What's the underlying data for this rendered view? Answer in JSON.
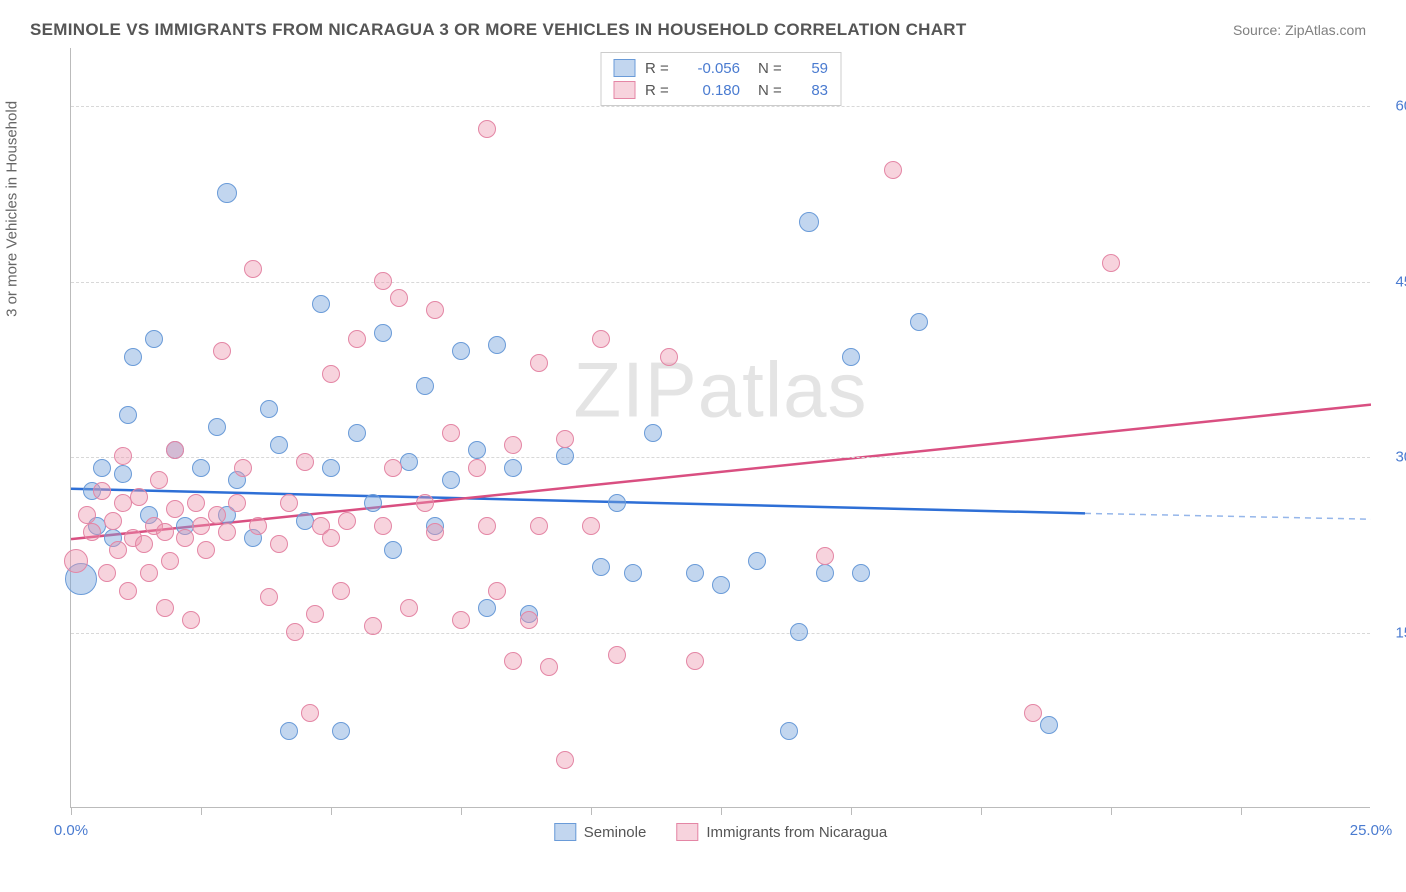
{
  "title": "SEMINOLE VS IMMIGRANTS FROM NICARAGUA 3 OR MORE VEHICLES IN HOUSEHOLD CORRELATION CHART",
  "source": "Source: ZipAtlas.com",
  "watermark": "ZIPatlas",
  "y_axis_label": "3 or more Vehicles in Household",
  "chart": {
    "type": "scatter",
    "xlim": [
      0,
      25
    ],
    "ylim": [
      0,
      65
    ],
    "x_ticks": [
      0,
      2.5,
      5,
      7.5,
      10,
      12.5,
      15,
      17.5,
      20,
      22.5
    ],
    "x_tick_labels": {
      "0": "0.0%",
      "25": "25.0%"
    },
    "y_ticks": [
      15,
      30,
      45,
      60
    ],
    "y_tick_labels": [
      "15.0%",
      "30.0%",
      "45.0%",
      "60.0%"
    ],
    "background_color": "#ffffff",
    "grid_color": "#d8d8d8",
    "axis_color": "#bbbbbb",
    "tick_label_color": "#4a7bd0",
    "series": [
      {
        "name": "Seminole",
        "fill": "rgba(120,165,220,0.45)",
        "stroke": "#6a9bd8",
        "R": "-0.056",
        "N": "59",
        "trend": {
          "x1": 0,
          "y1": 27.3,
          "x2": 19.5,
          "y2": 25.2,
          "dash_x2": 25,
          "dash_y2": 24.7,
          "color": "#2e6fd6",
          "width": 2.5
        },
        "points": [
          [
            0.2,
            19.5,
            16
          ],
          [
            0.4,
            27,
            9
          ],
          [
            0.5,
            24,
            9
          ],
          [
            0.6,
            29,
            9
          ],
          [
            0.8,
            23,
            9
          ],
          [
            1.0,
            28.5,
            9
          ],
          [
            1.1,
            33.5,
            9
          ],
          [
            1.2,
            38.5,
            9
          ],
          [
            1.5,
            25,
            9
          ],
          [
            1.6,
            40,
            9
          ],
          [
            2.0,
            30.5,
            9
          ],
          [
            2.2,
            24,
            9
          ],
          [
            2.5,
            29,
            9
          ],
          [
            2.8,
            32.5,
            9
          ],
          [
            3.0,
            52.5,
            10
          ],
          [
            3.0,
            25,
            9
          ],
          [
            3.2,
            28,
            9
          ],
          [
            3.5,
            23,
            9
          ],
          [
            3.8,
            34,
            9
          ],
          [
            4.0,
            31,
            9
          ],
          [
            4.2,
            6.5,
            9
          ],
          [
            4.5,
            24.5,
            9
          ],
          [
            4.8,
            43,
            9
          ],
          [
            5.0,
            29,
            9
          ],
          [
            5.2,
            6.5,
            9
          ],
          [
            5.5,
            32,
            9
          ],
          [
            5.8,
            26,
            9
          ],
          [
            6.0,
            40.5,
            9
          ],
          [
            6.2,
            22,
            9
          ],
          [
            6.5,
            29.5,
            9
          ],
          [
            6.8,
            36,
            9
          ],
          [
            7.0,
            24,
            9
          ],
          [
            7.3,
            28,
            9
          ],
          [
            7.5,
            39,
            9
          ],
          [
            7.8,
            30.5,
            9
          ],
          [
            8.0,
            17,
            9
          ],
          [
            8.2,
            39.5,
            9
          ],
          [
            8.5,
            29,
            9
          ],
          [
            8.8,
            16.5,
            9
          ],
          [
            9.5,
            30,
            9
          ],
          [
            10.2,
            20.5,
            9
          ],
          [
            10.5,
            26,
            9
          ],
          [
            10.8,
            20,
            9
          ],
          [
            11.2,
            32,
            9
          ],
          [
            12.0,
            20,
            9
          ],
          [
            12.5,
            19,
            9
          ],
          [
            13.2,
            21,
            9
          ],
          [
            13.8,
            6.5,
            9
          ],
          [
            14.0,
            15,
            9
          ],
          [
            14.2,
            50,
            10
          ],
          [
            14.5,
            20,
            9
          ],
          [
            15.0,
            38.5,
            9
          ],
          [
            15.2,
            20,
            9
          ],
          [
            16.3,
            41.5,
            9
          ],
          [
            18.8,
            7,
            9
          ]
        ]
      },
      {
        "name": "Immigrants from Nicaragua",
        "fill": "rgba(235,150,175,0.42)",
        "stroke": "#e486a5",
        "R": "0.180",
        "N": "83",
        "trend": {
          "x1": 0,
          "y1": 23,
          "x2": 25,
          "y2": 34.5,
          "color": "#d94f81",
          "width": 2.5
        },
        "points": [
          [
            0.1,
            21,
            12
          ],
          [
            0.3,
            25,
            9
          ],
          [
            0.4,
            23.5,
            9
          ],
          [
            0.6,
            27,
            9
          ],
          [
            0.7,
            20,
            9
          ],
          [
            0.8,
            24.5,
            9
          ],
          [
            0.9,
            22,
            9
          ],
          [
            1.0,
            26,
            9
          ],
          [
            1.0,
            30,
            9
          ],
          [
            1.1,
            18.5,
            9
          ],
          [
            1.2,
            23,
            9
          ],
          [
            1.3,
            26.5,
            9
          ],
          [
            1.4,
            22.5,
            9
          ],
          [
            1.5,
            20,
            9
          ],
          [
            1.6,
            24,
            9
          ],
          [
            1.7,
            28,
            9
          ],
          [
            1.8,
            23.5,
            9
          ],
          [
            1.8,
            17,
            9
          ],
          [
            1.9,
            21,
            9
          ],
          [
            2.0,
            25.5,
            9
          ],
          [
            2.0,
            30.5,
            9
          ],
          [
            2.2,
            23,
            9
          ],
          [
            2.3,
            16,
            9
          ],
          [
            2.4,
            26,
            9
          ],
          [
            2.5,
            24,
            9
          ],
          [
            2.6,
            22,
            9
          ],
          [
            2.8,
            25,
            9
          ],
          [
            2.9,
            39,
            9
          ],
          [
            3.0,
            23.5,
            9
          ],
          [
            3.2,
            26,
            9
          ],
          [
            3.3,
            29,
            9
          ],
          [
            3.5,
            46,
            9
          ],
          [
            3.6,
            24,
            9
          ],
          [
            3.8,
            18,
            9
          ],
          [
            4.0,
            22.5,
            9
          ],
          [
            4.2,
            26,
            9
          ],
          [
            4.3,
            15,
            9
          ],
          [
            4.5,
            29.5,
            9
          ],
          [
            4.6,
            8,
            9
          ],
          [
            4.7,
            16.5,
            9
          ],
          [
            4.8,
            24,
            9
          ],
          [
            5.0,
            23,
            9
          ],
          [
            5.0,
            37,
            9
          ],
          [
            5.2,
            18.5,
            9
          ],
          [
            5.3,
            24.5,
            9
          ],
          [
            5.5,
            40,
            9
          ],
          [
            5.8,
            15.5,
            9
          ],
          [
            6.0,
            45,
            9
          ],
          [
            6.0,
            24,
            9
          ],
          [
            6.2,
            29,
            9
          ],
          [
            6.3,
            43.5,
            9
          ],
          [
            6.5,
            17,
            9
          ],
          [
            6.8,
            26,
            9
          ],
          [
            7.0,
            42.5,
            9
          ],
          [
            7.0,
            23.5,
            9
          ],
          [
            7.3,
            32,
            9
          ],
          [
            7.5,
            16,
            9
          ],
          [
            7.8,
            29,
            9
          ],
          [
            8.0,
            24,
            9
          ],
          [
            8.0,
            58,
            9
          ],
          [
            8.2,
            18.5,
            9
          ],
          [
            8.5,
            12.5,
            9
          ],
          [
            8.5,
            31,
            9
          ],
          [
            8.8,
            16,
            9
          ],
          [
            9.0,
            24,
            9
          ],
          [
            9.0,
            38,
            9
          ],
          [
            9.2,
            12,
            9
          ],
          [
            9.5,
            31.5,
            9
          ],
          [
            9.5,
            4,
            9
          ],
          [
            10.0,
            24,
            9
          ],
          [
            10.2,
            40,
            9
          ],
          [
            10.5,
            13,
            9
          ],
          [
            11.5,
            38.5,
            9
          ],
          [
            12.0,
            12.5,
            9
          ],
          [
            14.5,
            21.5,
            9
          ],
          [
            15.8,
            54.5,
            9
          ],
          [
            18.5,
            8,
            9
          ],
          [
            20.0,
            46.5,
            9
          ]
        ]
      }
    ],
    "legend_top_labels": {
      "R": "R =",
      "N": "N ="
    },
    "legend_bottom": [
      "Seminole",
      "Immigrants from Nicaragua"
    ]
  }
}
